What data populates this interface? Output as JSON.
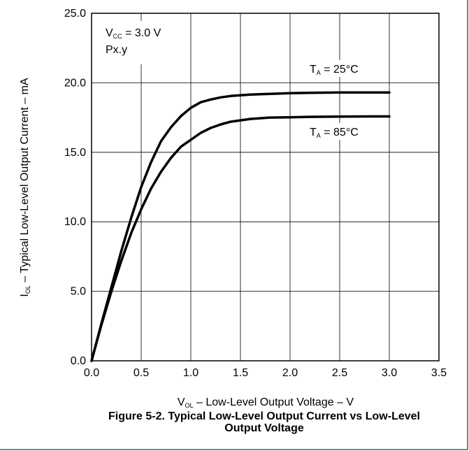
{
  "chart_data": {
    "type": "line",
    "x": [
      0.0,
      0.1,
      0.2,
      0.3,
      0.4,
      0.5,
      0.6,
      0.7,
      0.8,
      0.9,
      1.0,
      1.1,
      1.2,
      1.3,
      1.4,
      1.5,
      1.6,
      1.7,
      1.8,
      2.0,
      2.2,
      2.5,
      2.8,
      3.0
    ],
    "series": [
      {
        "name_main": "T",
        "name_sub": "A",
        "name_rest": " = 25°C",
        "values": [
          0.0,
          2.7,
          5.3,
          7.9,
          10.3,
          12.5,
          14.3,
          15.8,
          16.8,
          17.6,
          18.2,
          18.6,
          18.8,
          18.95,
          19.05,
          19.1,
          19.15,
          19.18,
          19.2,
          19.25,
          19.28,
          19.3,
          19.3,
          19.3
        ]
      },
      {
        "name_main": "T",
        "name_sub": "A",
        "name_rest": " = 85°C",
        "values": [
          0.0,
          2.6,
          5.0,
          7.2,
          9.2,
          10.9,
          12.4,
          13.6,
          14.6,
          15.4,
          15.9,
          16.4,
          16.75,
          17.0,
          17.2,
          17.3,
          17.4,
          17.45,
          17.5,
          17.52,
          17.55,
          17.57,
          17.58,
          17.58
        ]
      }
    ],
    "xlim": [
      0.0,
      3.5
    ],
    "ylim": [
      0.0,
      25.0
    ],
    "xticks": [
      "0.0",
      "0.5",
      "1.0",
      "1.5",
      "2.0",
      "2.5",
      "3.0",
      "3.5"
    ],
    "yticks": [
      "0.0",
      "5.0",
      "10.0",
      "15.0",
      "20.0",
      "25.0"
    ],
    "xlabel": {
      "main": "V",
      "sub": "OL",
      "rest": " – Low-Level Output Voltage – V"
    },
    "ylabel": {
      "main": "I",
      "sub": "OL",
      "rest": " – Typical Low-Level Output Current – mA"
    },
    "grid": true,
    "annotation": {
      "main": "V",
      "sub": "CC",
      "rest": " = 3.0 V",
      "line2": "Px.y"
    },
    "caption_line1": "Figure 5-2. Typical Low-Level Output Current vs Low-Level",
    "caption_line2": "Output Voltage"
  }
}
